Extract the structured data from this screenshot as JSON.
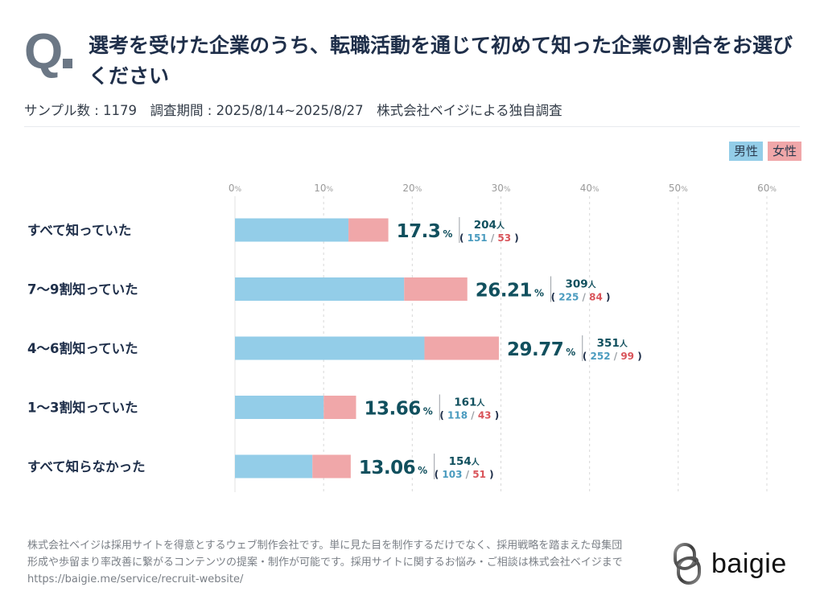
{
  "header": {
    "q_mark": "Q",
    "title": "選考を受けた企業のうち、転職活動を通じて初めて知った企業の割合をお選びください",
    "subtitle": "サンプル数 : 1179　調査期間 : 2025/8/14~2025/8/27　株式会社ベイジによる独自調査"
  },
  "legend": {
    "male_label": "男性",
    "female_label": "女性"
  },
  "colors": {
    "male": "#93cde8",
    "female": "#f0a7a9",
    "male_text": "#4a9bbf",
    "female_text": "#d9545a",
    "value_text": "#11505e",
    "grid": "#d8d8d8",
    "axis_text": "#9a9a9a"
  },
  "chart_data": {
    "type": "bar",
    "orientation": "horizontal",
    "stacked": true,
    "title": "選考を受けた企業のうち、転職活動を通じて初めて知った企業の割合をお選びください",
    "xlabel": "",
    "ylabel": "",
    "xlim": [
      0,
      60
    ],
    "x_ticks": [
      "0%",
      "10%",
      "20%",
      "30%",
      "40%",
      "50%",
      "60%"
    ],
    "grid": true,
    "legend_position": "top-right",
    "categories": [
      "すべて知っていた",
      "7〜9割知っていた",
      "4〜6割知っていた",
      "1〜3割知っていた",
      "すべて知らなかった"
    ],
    "totals_percent": [
      17.3,
      26.21,
      29.77,
      13.66,
      13.06
    ],
    "percent_labels": [
      "17.3",
      "26.21",
      "29.77",
      "13.66",
      "13.06"
    ],
    "percent_suffix": "%",
    "counts": [
      204,
      309,
      351,
      161,
      154
    ],
    "count_suffix": "人",
    "series": [
      {
        "name": "男性",
        "counts": [
          151,
          225,
          252,
          118,
          103
        ]
      },
      {
        "name": "女性",
        "counts": [
          53,
          84,
          99,
          43,
          51
        ]
      }
    ]
  },
  "footer": {
    "text_line1": "株式会社ベイジは採用サイトを得意とするウェブ制作会社です。単に見た目を制作するだけでなく、採用戦略を踏まえた母集団",
    "text_line2": "形成や歩留まり率改善に繋がるコンテンツの提案・制作が可能です。採用サイトに関するお悩み・ご相談は株式会社ベイジまで",
    "url": "https://baigie.me/service/recruit-website/",
    "logo_name": "baigie"
  }
}
